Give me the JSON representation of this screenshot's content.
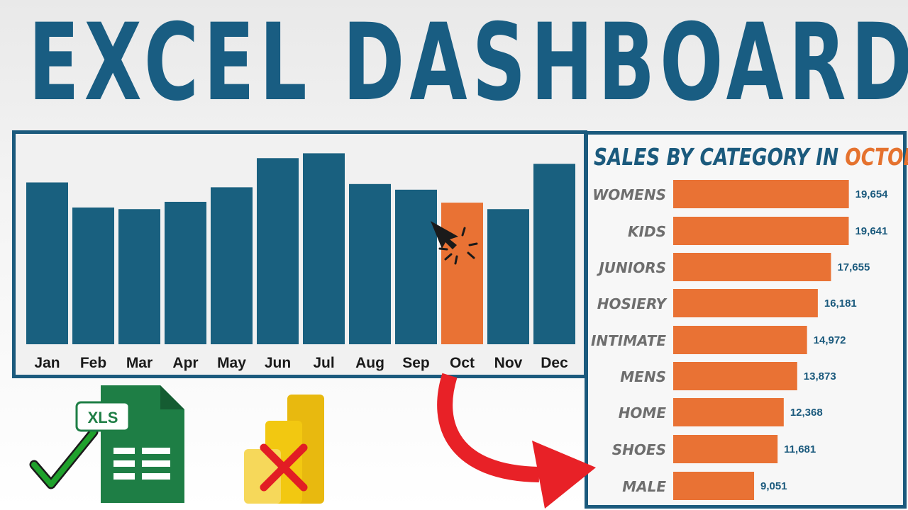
{
  "title": "EXCEL DASHBOARD",
  "colors": {
    "title": "#195d82",
    "bar_primary": "#19607f",
    "bar_highlight": "#e97234",
    "panel_border": "#1b5a7d",
    "category_label": "#6e6e6e",
    "value_label": "#1b5a7d",
    "arrow": "#e82127",
    "check": "#1fa12c",
    "excel_green": "#1e7e45",
    "powerbi_yellow": "#f2c811",
    "cross": "#e21d24"
  },
  "monthly_chart": {
    "chart_data": {
      "type": "bar",
      "categories": [
        "Jan",
        "Feb",
        "Mar",
        "Apr",
        "May",
        "Jun",
        "Jul",
        "Aug",
        "Sep",
        "Oct",
        "Nov",
        "Dec"
      ],
      "values": [
        200,
        169,
        167,
        176,
        194,
        230,
        236,
        198,
        191,
        175,
        167,
        223
      ],
      "highlight": "Oct",
      "ylim": [
        0,
        260
      ],
      "grid": false,
      "value_labels": false
    }
  },
  "category_chart": {
    "title_prefix": "SALES BY CATEGORY IN",
    "title_highlight": "OCTOBER",
    "chart_data": {
      "type": "bar",
      "orientation": "horizontal",
      "title": "SALES BY CATEGORY IN OCTOBER",
      "categories": [
        "WOMENS",
        "KIDS",
        "JUNIORS",
        "HOSIERY",
        "INTIMATE",
        "MENS",
        "HOME",
        "SHOES",
        "MALE"
      ],
      "values": [
        19654,
        19641,
        17655,
        16181,
        14972,
        13873,
        12368,
        11681,
        9051
      ],
      "value_labels": [
        "19,654",
        "19,641",
        "17,655",
        "16,181",
        "14,972",
        "13,873",
        "12,368",
        "11,681",
        "9,051"
      ],
      "xlim": [
        0,
        20000
      ]
    }
  },
  "xls_badge": "XLS"
}
